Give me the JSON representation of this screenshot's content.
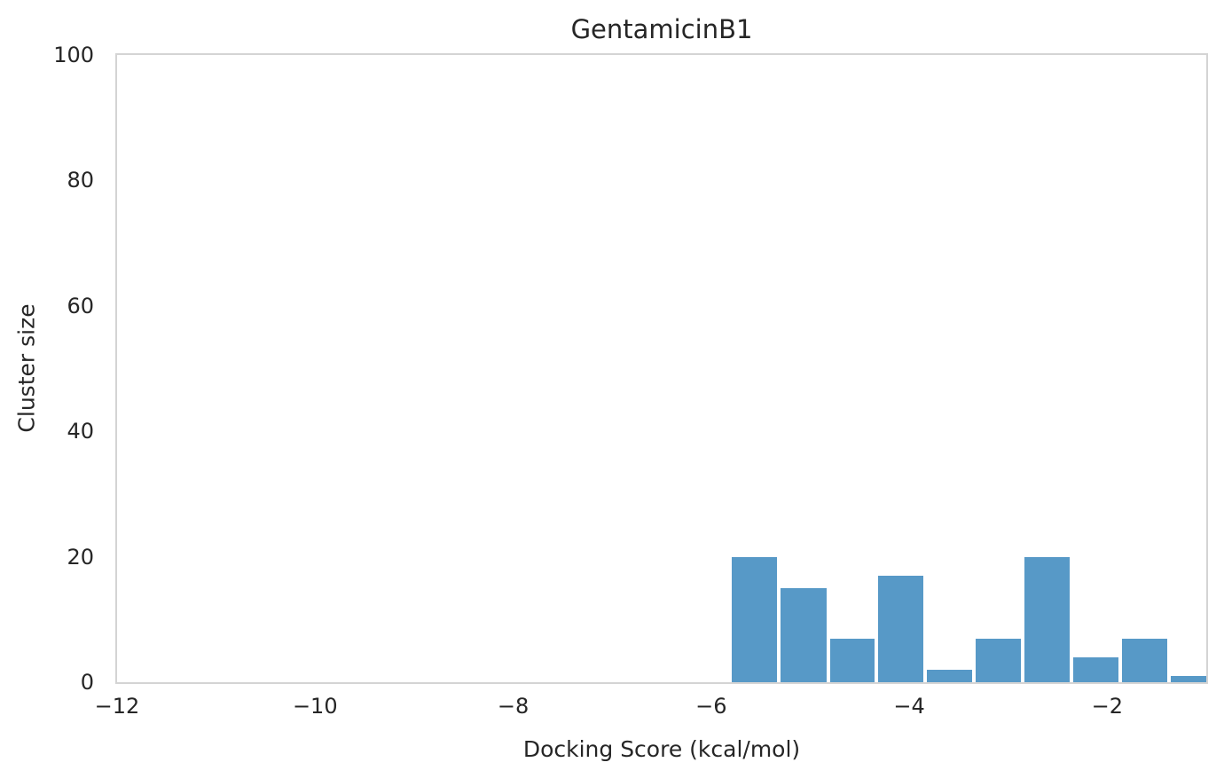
{
  "chart_data": {
    "type": "bar",
    "subtype": "histogram",
    "title": "GentamicinB1",
    "xlabel": "Docking Score (kcal/mol)",
    "ylabel": "Cluster size",
    "xlim": [
      -12,
      -1
    ],
    "ylim": [
      0,
      100
    ],
    "grid": false,
    "legend": null,
    "x_tick_values": [
      -12,
      -10,
      -8,
      -6,
      -4,
      -2
    ],
    "x_tick_labels": [
      "−12",
      "−10",
      "−8",
      "−6",
      "−4",
      "−2"
    ],
    "y_tick_values": [
      0,
      20,
      40,
      60,
      80,
      100
    ],
    "y_tick_labels": [
      "0",
      "20",
      "40",
      "60",
      "80",
      "100"
    ],
    "bin_edges": [
      -5.81,
      -5.32,
      -4.82,
      -4.33,
      -3.84,
      -3.35,
      -2.85,
      -2.36,
      -1.87,
      -1.38,
      -0.88
    ],
    "counts": [
      20,
      15,
      7,
      17,
      2,
      7,
      20,
      4,
      7,
      1
    ],
    "colors": {
      "bar_fill": "#5799c7",
      "bar_edge": "#ffffff",
      "spine": "#d4d4d4",
      "text": "#262626",
      "background": "#ffffff"
    }
  }
}
